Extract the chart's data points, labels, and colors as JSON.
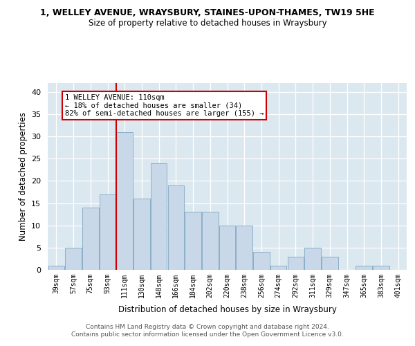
{
  "title": "1, WELLEY AVENUE, WRAYSBURY, STAINES-UPON-THAMES, TW19 5HE",
  "subtitle": "Size of property relative to detached houses in Wraysbury",
  "xlabel": "Distribution of detached houses by size in Wraysbury",
  "ylabel": "Number of detached properties",
  "bar_color": "#c8d8e8",
  "bar_edgecolor": "#8aafc8",
  "fig_facecolor": "#ffffff",
  "axes_facecolor": "#dce8f0",
  "grid_color": "#ffffff",
  "categories": [
    "39sqm",
    "57sqm",
    "75sqm",
    "93sqm",
    "111sqm",
    "130sqm",
    "148sqm",
    "166sqm",
    "184sqm",
    "202sqm",
    "220sqm",
    "238sqm",
    "256sqm",
    "274sqm",
    "292sqm",
    "311sqm",
    "329sqm",
    "347sqm",
    "365sqm",
    "383sqm",
    "401sqm"
  ],
  "values": [
    1,
    5,
    14,
    17,
    31,
    16,
    24,
    19,
    13,
    13,
    10,
    10,
    4,
    1,
    3,
    5,
    3,
    0,
    1,
    1,
    0
  ],
  "ylim": [
    0,
    42
  ],
  "yticks": [
    0,
    5,
    10,
    15,
    20,
    25,
    30,
    35,
    40
  ],
  "marker_bar_index": 4,
  "marker_line_color": "#cc0000",
  "annotation_line1": "1 WELLEY AVENUE: 110sqm",
  "annotation_line2": "← 18% of detached houses are smaller (34)",
  "annotation_line3": "82% of semi-detached houses are larger (155) →",
  "annotation_box_facecolor": "#ffffff",
  "annotation_box_edgecolor": "#cc0000",
  "footer_line1": "Contains HM Land Registry data © Crown copyright and database right 2024.",
  "footer_line2": "Contains public sector information licensed under the Open Government Licence v3.0."
}
